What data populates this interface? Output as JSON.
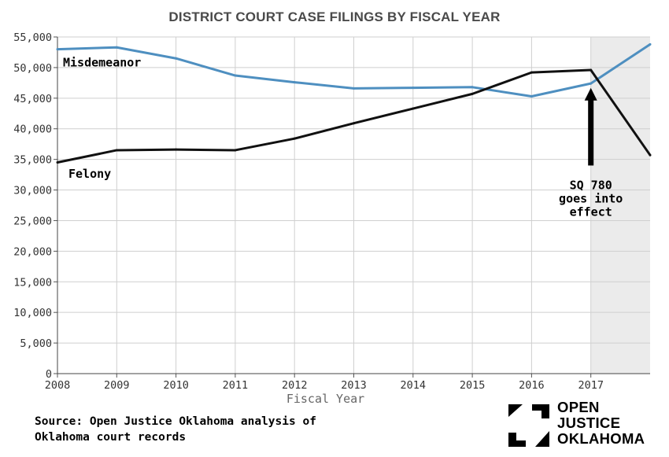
{
  "chart_data": {
    "type": "line",
    "title": "DISTRICT COURT CASE FILINGS BY FISCAL YEAR",
    "xlabel": "Fiscal Year",
    "ylabel": "",
    "x": [
      2008,
      2009,
      2010,
      2011,
      2012,
      2013,
      2014,
      2015,
      2016,
      2017,
      2018
    ],
    "x_ticks": [
      "2008",
      "2009",
      "2010",
      "2011",
      "2012",
      "2013",
      "2014",
      "2015",
      "2016",
      "2017"
    ],
    "xlim": [
      2008,
      2018
    ],
    "ylim": [
      0,
      55000
    ],
    "y_ticks": [
      "0",
      "5,000",
      "10,000",
      "15,000",
      "20,000",
      "25,000",
      "30,000",
      "35,000",
      "40,000",
      "45,000",
      "50,000",
      "55,000"
    ],
    "grid": true,
    "series": [
      {
        "name": "Misdemeanor",
        "color": "#4e8fc0",
        "values": [
          53000,
          53300,
          51500,
          48700,
          47600,
          46600,
          46700,
          46800,
          45300,
          47400,
          53800
        ]
      },
      {
        "name": "Felony",
        "color": "#111111",
        "values": [
          34500,
          36500,
          36600,
          36500,
          38400,
          40900,
          43300,
          45700,
          49200,
          49600,
          35700
        ]
      }
    ],
    "shaded_region": {
      "x_from": 2017,
      "x_to": 2018,
      "color": "#ebebeb"
    },
    "annotations": [
      {
        "text_lines": [
          "SQ 780",
          "goes into",
          "effect"
        ],
        "x": 2017,
        "arrow_to_y": 47200,
        "arrow_from_y": 34000
      }
    ]
  },
  "footer": {
    "source_lines": [
      "Source: Open Justice Oklahoma analysis of",
      "Oklahoma court records"
    ]
  },
  "logo": {
    "lines": [
      "OPEN",
      "JUSTICE",
      "OKLAHOMA"
    ]
  }
}
